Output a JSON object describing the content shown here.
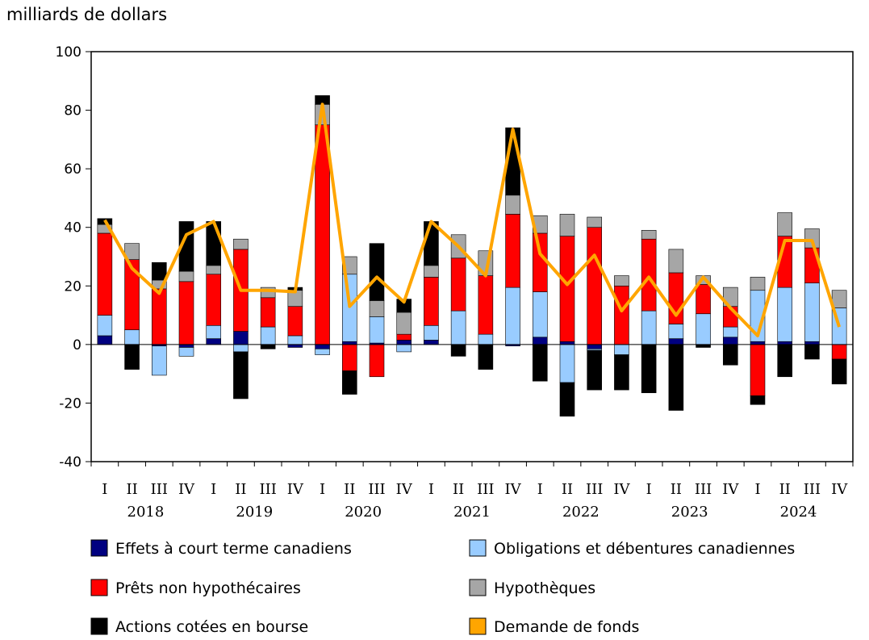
{
  "chart_data": {
    "type": "bar",
    "stacked": true,
    "unit_label": "milliards de dollars",
    "ylim": [
      -40,
      100
    ],
    "yticks": [
      100,
      80,
      60,
      40,
      20,
      0,
      -20,
      -40
    ],
    "grid": false,
    "legend_position": "bottom",
    "categories": [
      "2018 I",
      "2018 II",
      "2018 III",
      "2018 IV",
      "2019 I",
      "2019 II",
      "2019 III",
      "2019 IV",
      "2020 I",
      "2020 II",
      "2020 III",
      "2020 IV",
      "2021 I",
      "2021 II",
      "2021 III",
      "2021 IV",
      "2022 I",
      "2022 II",
      "2022 III",
      "2022 IV",
      "2023 I",
      "2023 II",
      "2023 III",
      "2023 IV",
      "2024 I",
      "2024 II",
      "2024 III",
      "2024 IV"
    ],
    "quarter_labels": [
      "I",
      "II",
      "III",
      "IV",
      "I",
      "II",
      "III",
      "IV",
      "I",
      "II",
      "III",
      "IV",
      "I",
      "II",
      "III",
      "IV",
      "I",
      "II",
      "III",
      "IV",
      "I",
      "II",
      "III",
      "IV",
      "I",
      "II",
      "III",
      "IV"
    ],
    "year_labels": [
      "2018",
      "2019",
      "2020",
      "2021",
      "2022",
      "2023",
      "2024"
    ],
    "series": [
      {
        "name": "Effets à court terme canadiens",
        "color": "#000080",
        "values": [
          3,
          0,
          -0.5,
          -1,
          2,
          4.5,
          0,
          -1,
          -1.5,
          1,
          0.5,
          1.5,
          1.5,
          0,
          0,
          -0.5,
          2.5,
          1,
          -1.5,
          0,
          0,
          2,
          0,
          2.5,
          1,
          1,
          1,
          0
        ]
      },
      {
        "name": "Obligations et débentures canadiennes",
        "color": "#99CCFF",
        "values": [
          7,
          5,
          -10,
          -3,
          4.5,
          -2.5,
          6,
          3,
          -2,
          23,
          9,
          -2.5,
          5,
          11.5,
          3.5,
          19.5,
          15.5,
          -13,
          -0.5,
          -3.5,
          11.5,
          5,
          10.5,
          3.5,
          17.5,
          18.5,
          20,
          12.5
        ]
      },
      {
        "name": "Prêts non hypothécaires",
        "color": "#FF0000",
        "values": [
          28,
          24,
          19,
          21.5,
          17.5,
          28,
          10,
          10,
          75,
          -9,
          -11,
          2,
          16.5,
          18,
          20,
          25,
          20,
          36,
          40,
          20,
          24.5,
          17.5,
          10,
          7,
          -17.5,
          17.5,
          12,
          -5
        ]
      },
      {
        "name": "Hypothèques",
        "color": "#A6A6A6",
        "values": [
          3,
          5.5,
          3,
          3.5,
          3,
          3.5,
          3.5,
          5.5,
          7,
          6,
          5.5,
          7.5,
          4,
          8,
          8.5,
          6.5,
          6,
          7.5,
          3.5,
          3.5,
          3,
          8,
          3,
          6.5,
          4.5,
          8,
          6.5,
          6
        ]
      },
      {
        "name": "Actions cotées en bourse",
        "color": "#000000",
        "values": [
          2,
          -8.5,
          6,
          17,
          15,
          -16,
          -1.5,
          1,
          3,
          -8,
          19.5,
          4.5,
          15,
          -4,
          -8.5,
          23,
          -12.5,
          -11.5,
          -13.5,
          -12,
          -16.5,
          -22.5,
          -1,
          -7,
          -3,
          -11,
          -5,
          -8.5
        ]
      }
    ],
    "line": {
      "name": "Demande de fonds",
      "color": "#FFA500",
      "values": [
        42.5,
        26,
        17.5,
        37.5,
        42,
        18.5,
        18.5,
        18,
        82,
        13,
        23,
        14.5,
        42,
        33.5,
        23.5,
        73.5,
        31,
        20.5,
        30.5,
        11.5,
        23,
        10,
        23,
        12.5,
        3,
        35.5,
        35.5,
        6
      ]
    }
  }
}
